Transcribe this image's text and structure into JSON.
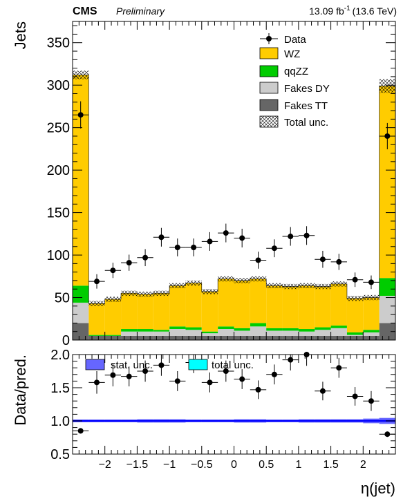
{
  "header": {
    "experiment": "CMS",
    "status": "Preliminary",
    "lumi_value": "13.09 fb",
    "lumi_exp": "-1",
    "energy": "(13.6 TeV)"
  },
  "legend": {
    "data": "Data",
    "wz": "WZ",
    "qqzz": "qqZZ",
    "fakes_dy": "Fakes DY",
    "fakes_tt": "Fakes TT",
    "total_unc": "Total unc."
  },
  "ratio_legend": {
    "stat": "stat. unc.",
    "total": "total unc."
  },
  "colors": {
    "wz": "#ffcc00",
    "qqzz": "#00cc00",
    "fakes_dy": "#cccccc",
    "fakes_tt": "#666666",
    "stat_band": "#6666ff",
    "total_band": "#00ffff",
    "ratio_line": "#0000ff"
  },
  "chart_data": [
    {
      "type": "bar",
      "stacked": true,
      "xlabel": "η(jet)",
      "ylabel": "Jets",
      "xlim": [
        -2.5,
        2.5
      ],
      "ylim": [
        0,
        375
      ],
      "x_ticks": [
        "−2",
        "−1.5",
        "−1",
        "−0.5",
        "0",
        "0.5",
        "1",
        "1.5",
        "2"
      ],
      "y_ticks": [
        "0",
        "50",
        "100",
        "150",
        "200",
        "250",
        "300",
        "350"
      ],
      "bin_edges": [
        -2.5,
        -2.25,
        -2.0,
        -1.75,
        -1.5,
        -1.25,
        -1.0,
        -0.75,
        -0.5,
        -0.25,
        0.0,
        0.25,
        0.5,
        0.75,
        1.0,
        1.25,
        1.5,
        1.75,
        2.0,
        2.25,
        2.5
      ],
      "series": [
        {
          "name": "Fakes TT",
          "values": [
            20,
            5,
            5,
            5,
            5,
            5,
            5,
            5,
            5,
            5,
            5,
            5,
            5,
            5,
            5,
            5,
            5,
            5,
            5,
            20
          ]
        },
        {
          "name": "Fakes DY",
          "values": [
            24,
            0,
            0,
            5,
            5,
            5,
            8,
            7,
            3,
            8,
            6,
            11,
            6,
            6,
            5,
            7,
            9,
            1,
            4,
            32
          ]
        },
        {
          "name": "qqZZ",
          "values": [
            20,
            1,
            1,
            3,
            3,
            2,
            3,
            3,
            2,
            3,
            3,
            4,
            3,
            3,
            3,
            3,
            3,
            3,
            3,
            21
          ]
        },
        {
          "name": "WZ",
          "values": [
            248,
            37,
            42,
            42,
            41,
            43,
            48,
            52,
            47,
            56,
            56,
            52,
            50,
            49,
            51,
            48,
            49,
            40,
            38,
            226
          ]
        }
      ],
      "total_unc": [
        5,
        3,
        3,
        3,
        3,
        3,
        3,
        3,
        3,
        3,
        3,
        3,
        3,
        3,
        3,
        3,
        3,
        3,
        3,
        8
      ],
      "data": {
        "name": "Data",
        "x": [
          -2.375,
          -2.125,
          -1.875,
          -1.625,
          -1.375,
          -1.125,
          -0.875,
          -0.625,
          -0.375,
          -0.125,
          0.125,
          0.375,
          0.625,
          0.875,
          1.125,
          1.375,
          1.625,
          1.875,
          2.125,
          2.375
        ],
        "y": [
          265,
          69,
          82,
          91,
          97,
          121,
          109,
          109,
          116,
          126,
          120,
          94,
          108,
          122,
          123,
          95,
          92,
          71,
          68,
          240
        ],
        "yerr": [
          16,
          8.5,
          9,
          9.5,
          10,
          11,
          10.5,
          10.5,
          11,
          11,
          11,
          10,
          10.5,
          11,
          11,
          10,
          9.5,
          8.5,
          8,
          15.5
        ]
      }
    },
    {
      "type": "scatter",
      "xlabel": "η(jet)",
      "ylabel": "Data/pred.",
      "xlim": [
        -2.5,
        2.5
      ],
      "ylim": [
        0.5,
        2.0
      ],
      "reference_line": 1.0,
      "x_ticks": [
        "−2",
        "−1.5",
        "−1",
        "−0.5",
        "0",
        "0.5",
        "1",
        "1.5",
        "2"
      ],
      "y_ticks": [
        "0.5",
        "1.0",
        "1.5",
        "2.0"
      ],
      "x": [
        -2.375,
        -2.125,
        -1.875,
        -1.625,
        -1.375,
        -1.125,
        -0.875,
        -0.625,
        -0.375,
        -0.125,
        0.125,
        0.375,
        0.625,
        0.875,
        1.125,
        1.375,
        1.625,
        1.875,
        2.125,
        2.375
      ],
      "y": [
        0.85,
        1.58,
        1.69,
        1.67,
        1.75,
        1.84,
        1.6,
        1.88,
        1.58,
        1.75,
        1.63,
        1.47,
        1.7,
        1.92,
        2.0,
        1.45,
        1.8,
        1.37,
        1.3,
        0.8
      ],
      "yerr": [
        0.04,
        0.17,
        0.17,
        0.15,
        0.16,
        0.16,
        0.15,
        0.16,
        0.15,
        0.16,
        0.15,
        0.14,
        0.15,
        0.16,
        0.17,
        0.14,
        0.15,
        0.14,
        0.15,
        0.04
      ],
      "stat_unc": [
        0.02,
        0.02,
        0.02,
        0.02,
        0.025,
        0.025,
        0.025,
        0.02,
        0.02,
        0.02,
        0.025,
        0.025,
        0.02,
        0.02,
        0.025,
        0.025,
        0.025,
        0.025,
        0.035,
        0.045
      ]
    }
  ]
}
